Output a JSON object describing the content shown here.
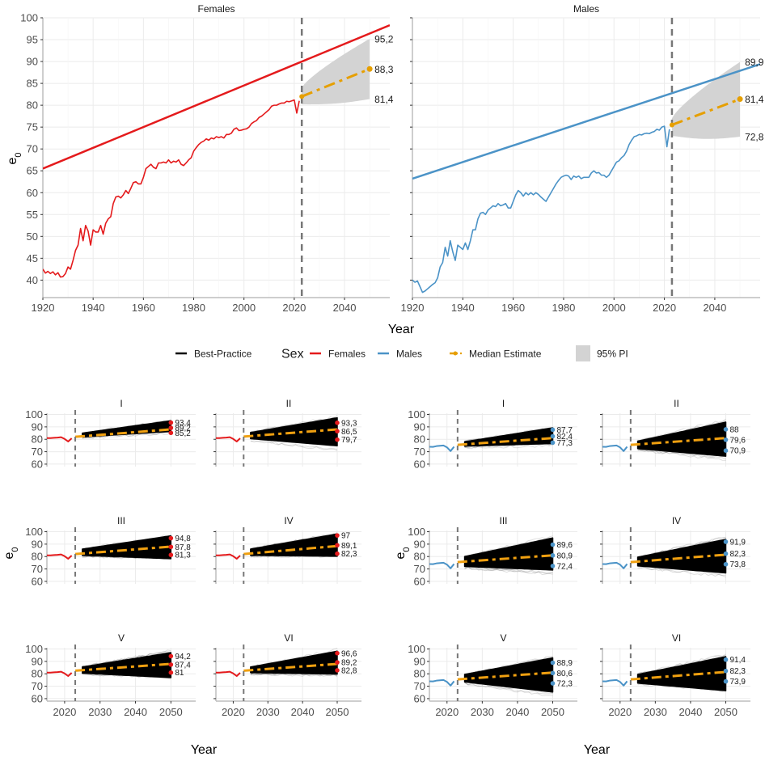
{
  "chart_data": {
    "type": "line",
    "top_panels": {
      "ylabel": "e0",
      "xlabel": "Year",
      "xlim": [
        1920,
        2058
      ],
      "ylim": [
        36,
        100
      ],
      "xticks": [
        1920,
        1940,
        1960,
        1980,
        2000,
        2020,
        2040
      ],
      "yticks_left": [
        40,
        45,
        50,
        55,
        60,
        65,
        70,
        75,
        80,
        85,
        90,
        95,
        100
      ],
      "jump_off_year": 2023,
      "panels": [
        {
          "title": "Females",
          "color": "#e41a1c",
          "best_practice": {
            "x": [
              1920,
              2058
            ],
            "y": [
              65.5,
              98.3
            ]
          },
          "observed": {
            "x": [
              1920,
              1921,
              1922,
              1923,
              1924,
              1925,
              1926,
              1927,
              1928,
              1929,
              1930,
              1931,
              1932,
              1933,
              1934,
              1935,
              1936,
              1937,
              1938,
              1939,
              1940,
              1941,
              1942,
              1943,
              1944,
              1945,
              1946,
              1947,
              1948,
              1949,
              1950,
              1951,
              1952,
              1953,
              1954,
              1955,
              1956,
              1957,
              1958,
              1959,
              1960,
              1961,
              1962,
              1963,
              1964,
              1965,
              1966,
              1967,
              1968,
              1969,
              1970,
              1971,
              1972,
              1973,
              1974,
              1975,
              1976,
              1977,
              1978,
              1979,
              1980,
              1981,
              1982,
              1983,
              1984,
              1985,
              1986,
              1987,
              1988,
              1989,
              1990,
              1991,
              1992,
              1993,
              1994,
              1995,
              1996,
              1997,
              1998,
              1999,
              2000,
              2001,
              2002,
              2003,
              2004,
              2005,
              2006,
              2007,
              2008,
              2009,
              2010,
              2011,
              2012,
              2013,
              2014,
              2015,
              2016,
              2017,
              2018,
              2019,
              2020,
              2021,
              2022
            ],
            "y": [
              42.5,
              41.6,
              42.0,
              41.5,
              41.9,
              41.2,
              41.7,
              40.7,
              40.8,
              41.5,
              43.0,
              42.5,
              44.5,
              46.8,
              48.0,
              51.8,
              49.0,
              52.5,
              51.2,
              48.0,
              51.5,
              51.0,
              51.0,
              52.5,
              50.5,
              53.0,
              54.0,
              54.5,
              57.5,
              59.0,
              59.2,
              58.8,
              59.5,
              60.5,
              59.8,
              61.0,
              62.3,
              62.5,
              62.0,
              62.0,
              63.5,
              65.5,
              66.0,
              66.5,
              65.8,
              65.5,
              66.8,
              66.8,
              67.0,
              66.8,
              67.5,
              66.8,
              67.2,
              67.0,
              67.5,
              66.5,
              66.2,
              66.8,
              67.5,
              68.0,
              69.5,
              70.3,
              71.0,
              71.5,
              71.8,
              72.3,
              72.0,
              72.5,
              72.3,
              72.8,
              72.6,
              72.8,
              72.5,
              73.3,
              73.3,
              73.6,
              74.5,
              74.8,
              74.2,
              74.3,
              74.5,
              74.6,
              75.0,
              75.8,
              76.2,
              76.5,
              77.2,
              77.5,
              78.0,
              78.5,
              79.0,
              79.8,
              80.0,
              80.0,
              80.3,
              80.5,
              80.5,
              80.9,
              80.8,
              81.0,
              81.2,
              78.2,
              81.0
            ]
          },
          "median": {
            "x": [
              2023,
              2050
            ],
            "y": [
              82.0,
              88.3
            ]
          },
          "pi95": {
            "x": [
              2023,
              2050
            ],
            "lower_start": 80.2,
            "lower_end": 81.4,
            "upper_start": 84.0,
            "upper_end": 95.2
          },
          "end_labels": [
            "95,2",
            "88,3",
            "81,4"
          ],
          "end_values": [
            95.2,
            88.3,
            81.4
          ]
        },
        {
          "title": "Males",
          "color": "#4b93c7",
          "best_practice": {
            "x": [
              1920,
              2058
            ],
            "y": [
              63.2,
              89.4
            ]
          },
          "observed": {
            "x": [
              1920,
              1921,
              1922,
              1923,
              1924,
              1925,
              1926,
              1927,
              1928,
              1929,
              1930,
              1931,
              1932,
              1933,
              1934,
              1935,
              1936,
              1937,
              1938,
              1939,
              1940,
              1941,
              1942,
              1943,
              1944,
              1945,
              1946,
              1947,
              1948,
              1949,
              1950,
              1951,
              1952,
              1953,
              1954,
              1955,
              1956,
              1957,
              1958,
              1959,
              1960,
              1961,
              1962,
              1963,
              1964,
              1965,
              1966,
              1967,
              1968,
              1969,
              1970,
              1971,
              1972,
              1973,
              1974,
              1975,
              1976,
              1977,
              1978,
              1979,
              1980,
              1981,
              1982,
              1983,
              1984,
              1985,
              1986,
              1987,
              1988,
              1989,
              1990,
              1991,
              1992,
              1993,
              1994,
              1995,
              1996,
              1997,
              1998,
              1999,
              2000,
              2001,
              2002,
              2003,
              2004,
              2005,
              2006,
              2007,
              2008,
              2009,
              2010,
              2011,
              2012,
              2013,
              2014,
              2015,
              2016,
              2017,
              2018,
              2019,
              2020,
              2021,
              2022
            ],
            "y": [
              40.0,
              39.5,
              39.8,
              38.5,
              37.2,
              37.5,
              38.0,
              38.5,
              39.0,
              39.4,
              40.5,
              43.0,
              44.0,
              47.5,
              45.5,
              49.0,
              46.5,
              44.5,
              48.0,
              47.5,
              47.0,
              48.5,
              47.0,
              49.0,
              51.5,
              51.5,
              54.0,
              55.3,
              55.5,
              55.0,
              56.0,
              56.5,
              57.0,
              56.8,
              57.5,
              57.0,
              57.2,
              57.5,
              56.5,
              56.5,
              58.0,
              59.5,
              60.5,
              60.0,
              59.2,
              60.0,
              59.5,
              60.0,
              59.5,
              60.0,
              59.6,
              59.0,
              58.5,
              58.0,
              59.0,
              60.0,
              61.0,
              62.0,
              62.8,
              63.5,
              63.8,
              64.0,
              63.8,
              63.0,
              63.8,
              63.5,
              63.8,
              63.2,
              63.5,
              63.5,
              63.5,
              64.5,
              65.0,
              64.5,
              64.6,
              64.0,
              64.0,
              63.5,
              64.0,
              65.0,
              66.0,
              67.0,
              67.3,
              68.0,
              68.5,
              69.5,
              71.0,
              72.0,
              72.8,
              73.0,
              73.3,
              73.2,
              73.5,
              73.6,
              73.5,
              73.8,
              74.0,
              74.5,
              74.3,
              75.0,
              75.2,
              70.5,
              74.5
            ]
          },
          "median": {
            "x": [
              2023,
              2050
            ],
            "y": [
              75.5,
              81.4
            ]
          },
          "pi95": {
            "x": [
              2023,
              2050
            ],
            "lower_start": 73.0,
            "lower_end": 72.8,
            "upper_start": 77.0,
            "upper_end": 89.9
          },
          "end_labels": [
            "89,9",
            "81,4",
            "72,8"
          ],
          "end_values": [
            89.9,
            81.4,
            72.8
          ]
        }
      ]
    },
    "legend": {
      "items": [
        {
          "label": "Best-Practice",
          "type": "line",
          "color": "#000000"
        },
        {
          "label": "Sex",
          "type": "title"
        },
        {
          "label": "Females",
          "type": "line",
          "color": "#e41a1c"
        },
        {
          "label": "Males",
          "type": "line",
          "color": "#4b93c7"
        },
        {
          "label": "Median Estimate",
          "type": "dashdot-point",
          "color": "#e69f00"
        },
        {
          "label": "95% PI",
          "type": "fill",
          "color": "#d3d3d3"
        }
      ]
    },
    "bottom_panels": {
      "ylabel": "e0",
      "xlabel": "Year",
      "xlim": [
        2015,
        2057
      ],
      "ylim": [
        58,
        101
      ],
      "xticks": [
        2020,
        2030,
        2040,
        2050
      ],
      "yticks": [
        60,
        70,
        80,
        90,
        100
      ],
      "jump_off_year": 2023,
      "observed_years": [
        2015,
        2016,
        2017,
        2018,
        2019,
        2020,
        2021,
        2022
      ],
      "observed_female": [
        81.0,
        81.0,
        81.2,
        81.4,
        81.7,
        80.3,
        78.2,
        80.8
      ],
      "observed_male": [
        74.0,
        73.9,
        74.5,
        74.8,
        75.0,
        73.5,
        70.5,
        74.0
      ],
      "groups": [
        {
          "sex": "Females",
          "color": "#e41a1c",
          "panels": [
            {
              "title": "I",
              "median": [
                82.0,
                88.0
              ],
              "band": [
                [
                  80.5,
                  85.5
                ],
                [
                  85.2,
                  95.8
                ]
              ],
              "labels": [
                "93,4",
                "89,2",
                "85,2"
              ],
              "values": [
                93.4,
                89.2,
                85.2
              ]
            },
            {
              "title": "II",
              "median": [
                82.2,
                88.0
              ],
              "band": [
                [
                  79.0,
                  86.0
                ],
                [
                  72.0,
                  99.5
                ]
              ],
              "labels": [
                "93,3",
                "86,5",
                "79,7"
              ],
              "values": [
                93.3,
                86.5,
                79.7
              ]
            },
            {
              "title": "III",
              "median": [
                82.0,
                88.0
              ],
              "band": [
                [
                  79.5,
                  86.5
                ],
                [
                  76.0,
                  98.5
                ]
              ],
              "labels": [
                "94,8",
                "87,8",
                "81,3"
              ],
              "values": [
                94.8,
                87.8,
                81.3
              ]
            },
            {
              "title": "IV",
              "median": [
                82.0,
                88.5
              ],
              "band": [
                [
                  79.5,
                  86.5
                ],
                [
                  78.0,
                  100.0
                ]
              ],
              "labels": [
                "97",
                "89,1",
                "82,3"
              ],
              "values": [
                97.0,
                89.1,
                82.3
              ]
            },
            {
              "title": "V",
              "median": [
                82.5,
                88.0
              ],
              "band": [
                [
                  79.0,
                  86.0
                ],
                [
                  74.5,
                  99.0
                ]
              ],
              "labels": [
                "94,2",
                "87,4",
                "81"
              ],
              "values": [
                94.2,
                87.4,
                81.0
              ]
            },
            {
              "title": "VI",
              "median": [
                82.5,
                88.0
              ],
              "band": [
                [
                  79.5,
                  86.0
                ],
                [
                  77.5,
                  100.0
                ]
              ],
              "labels": [
                "96,6",
                "89,2",
                "82,8"
              ],
              "values": [
                96.6,
                89.2,
                82.8
              ]
            }
          ]
        },
        {
          "sex": "Males",
          "color": "#4b93c7",
          "panels": [
            {
              "title": "I",
              "median": [
                75.5,
                81.0
              ],
              "band": [
                [
                  73.0,
                  78.5
                ],
                [
                  75.0,
                  90.5
                ]
              ],
              "labels": [
                "87,7",
                "82,4",
                "77,3"
              ],
              "values": [
                87.7,
                82.4,
                77.3
              ]
            },
            {
              "title": "II",
              "median": [
                75.5,
                81.0
              ],
              "band": [
                [
                  71.0,
                  79.0
                ],
                [
                  63.0,
                  96.5
                ]
              ],
              "labels": [
                "88",
                "79,6",
                "70,9"
              ],
              "values": [
                88.0,
                79.6,
                70.9
              ]
            },
            {
              "title": "III",
              "median": [
                75.5,
                81.0
              ],
              "band": [
                [
                  70.5,
                  80.5
                ],
                [
                  66.0,
                  97.5
                ]
              ],
              "labels": [
                "89,6",
                "80,9",
                "72,4"
              ],
              "values": [
                89.6,
                80.9,
                72.4
              ]
            },
            {
              "title": "IV",
              "median": [
                75.5,
                81.5
              ],
              "band": [
                [
                  71.0,
                  80.0
                ],
                [
                  63.5,
                  96.5
                ]
              ],
              "labels": [
                "91,9",
                "82,3",
                "73,8"
              ],
              "values": [
                91.9,
                82.3,
                73.8
              ]
            },
            {
              "title": "V",
              "median": [
                75.5,
                81.0
              ],
              "band": [
                [
                  72.0,
                  80.0
                ],
                [
                  62.0,
                  95.5
                ]
              ],
              "labels": [
                "88,9",
                "80,6",
                "72,3"
              ],
              "values": [
                88.9,
                80.6,
                72.3
              ]
            },
            {
              "title": "VI",
              "median": [
                75.5,
                81.5
              ],
              "band": [
                [
                  71.0,
                  80.0
                ],
                [
                  63.0,
                  96.5
                ]
              ],
              "labels": [
                "91,4",
                "82,3",
                "73,9"
              ],
              "values": [
                91.4,
                82.3,
                73.9
              ]
            }
          ]
        }
      ]
    },
    "colors": {
      "median": "#f0a010",
      "median_top": "#e69f00",
      "pi_fill": "#d3d3d3",
      "vline": "#777777",
      "grid": "#ebebeb",
      "axis": "#bdbdbd"
    }
  }
}
